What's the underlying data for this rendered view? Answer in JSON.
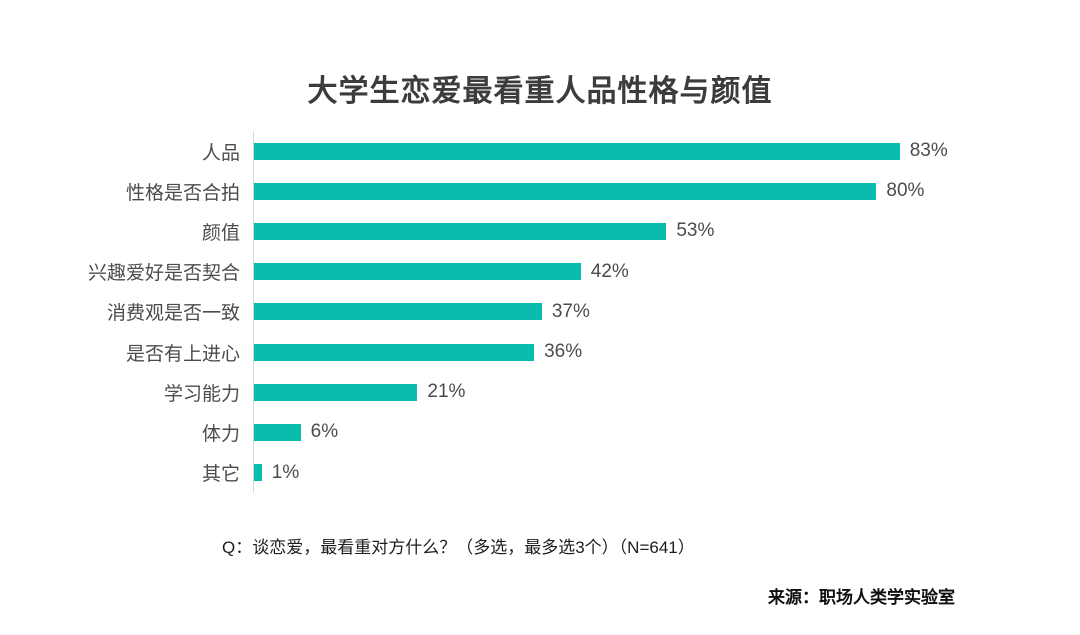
{
  "chart": {
    "title": "大学生恋爱最看重人品性格与颜值"
  },
  "chart_data": {
    "type": "bar",
    "orientation": "horizontal",
    "title": "大学生恋爱最看重人品性格与颜值",
    "categories": [
      "人品",
      "性格是否合拍",
      "颜值",
      "兴趣爱好是否契合",
      "消费观是否一致",
      "是否有上进心",
      "学习能力",
      "体力",
      "其它"
    ],
    "values": [
      83,
      80,
      53,
      42,
      37,
      36,
      21,
      6,
      1
    ],
    "value_labels": [
      "83%",
      "80%",
      "53%",
      "42%",
      "37%",
      "36%",
      "21%",
      "6%",
      "1%"
    ],
    "unit": "%",
    "xlim": [
      0,
      100
    ],
    "bar_color": "#0abcad",
    "axis_line_color": "#d9d9d9",
    "grid": false,
    "legend": false,
    "sorted": "descending"
  },
  "footer": {
    "question": "Q：谈恋爱，最看重对方什么？（多选，最多选3个）（N=641）",
    "source": "来源：职场人类学实验室"
  }
}
